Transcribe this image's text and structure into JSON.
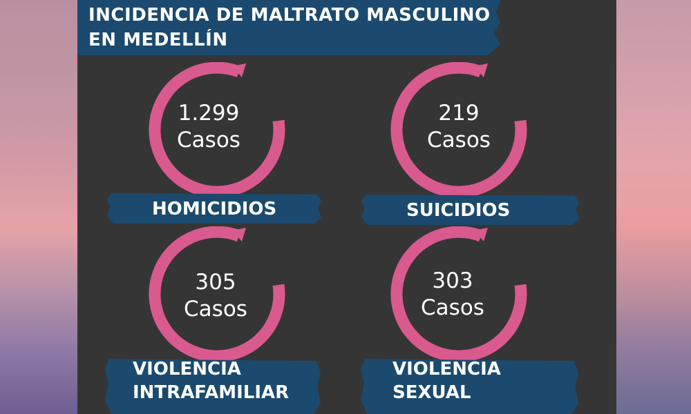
{
  "title": {
    "line1": "INCIDENCIA DE MALTRATO MASCULINO",
    "line2": "EN MEDELLÍN"
  },
  "colors": {
    "ring": "#d95a8e",
    "banner": "#1b4a6e",
    "panel": "#363536",
    "text": "#ffffff"
  },
  "stats": [
    {
      "number": "1.299",
      "unit": "Casos",
      "label_lines": [
        "HOMICIDIOS"
      ]
    },
    {
      "number": "219",
      "unit": "Casos",
      "label_lines": [
        "SUICIDIOS"
      ]
    },
    {
      "number": "305",
      "unit": "Casos",
      "label_lines": [
        "VIOLENCIA",
        "INTRAFAMILIAR"
      ]
    },
    {
      "number": "303",
      "unit": "Casos",
      "label_lines": [
        "VIOLENCIA",
        "SEXUAL"
      ]
    }
  ]
}
